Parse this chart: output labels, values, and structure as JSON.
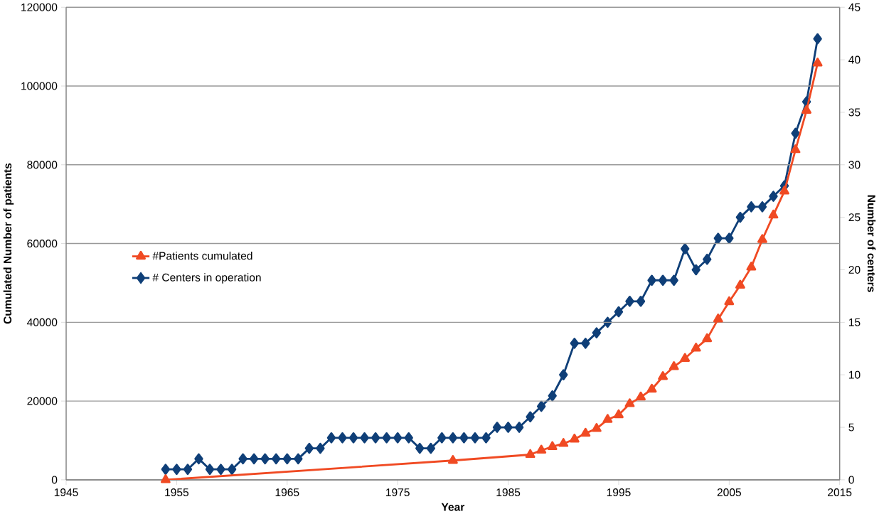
{
  "chart_data": {
    "type": "line",
    "xlabel": "Year",
    "ylabel": "Cumulated Number of patients",
    "y2label": "Number of centers",
    "xlim": [
      1945,
      2015
    ],
    "xticks": [
      1945,
      1955,
      1965,
      1975,
      1985,
      1995,
      2005,
      2015
    ],
    "ylim": [
      0,
      120000
    ],
    "yticks": [
      0,
      20000,
      40000,
      60000,
      80000,
      100000,
      120000
    ],
    "y2lim": [
      0,
      45
    ],
    "y2ticks": [
      0,
      5,
      10,
      15,
      20,
      25,
      30,
      35,
      40,
      45
    ],
    "grid": "y",
    "legend": "left",
    "line_style": "solid",
    "series": [
      {
        "name": "#Patients cumulated",
        "color": "#f04a23",
        "marker": "triangle",
        "x": [
          1954,
          1980,
          1987,
          1988,
          1989,
          1990,
          1991,
          1992,
          1993,
          1994,
          1995,
          1996,
          1997,
          1998,
          1999,
          2000,
          2001,
          2002,
          2003,
          2004,
          2005,
          2006,
          2007,
          2008,
          2009,
          2010,
          2011,
          2012,
          2013
        ],
        "values": [
          0,
          4900,
          6400,
          7500,
          8400,
          9200,
          10300,
          11800,
          13000,
          15300,
          16500,
          19300,
          21000,
          23000,
          26200,
          28700,
          30800,
          33400,
          35800,
          40800,
          45200,
          49400,
          54000,
          61000,
          67200,
          73300,
          83800,
          93800,
          105800
        ]
      },
      {
        "name": "# Centers in operation",
        "color": "#0f3f78",
        "marker": "diamond",
        "axis": "y2",
        "x": [
          1954,
          1955,
          1956,
          1957,
          1958,
          1959,
          1960,
          1961,
          1962,
          1963,
          1964,
          1965,
          1966,
          1967,
          1968,
          1969,
          1970,
          1971,
          1972,
          1973,
          1974,
          1975,
          1976,
          1977,
          1978,
          1979,
          1980,
          1981,
          1982,
          1983,
          1984,
          1985,
          1986,
          1987,
          1988,
          1989,
          1990,
          1991,
          1992,
          1993,
          1994,
          1995,
          1996,
          1997,
          1998,
          1999,
          2000,
          2001,
          2002,
          2003,
          2004,
          2005,
          2006,
          2007,
          2008,
          2009,
          2010,
          2011,
          2012,
          2013
        ],
        "values": [
          1,
          1,
          1,
          2,
          1,
          1,
          1,
          2,
          2,
          2,
          2,
          2,
          2,
          3,
          3,
          4,
          4,
          4,
          4,
          4,
          4,
          4,
          4,
          3,
          3,
          4,
          4,
          4,
          4,
          4,
          5,
          5,
          5,
          6,
          7,
          8,
          10,
          13,
          13,
          14,
          15,
          16,
          17,
          17,
          19,
          19,
          19,
          22,
          20,
          21,
          23,
          23,
          25,
          26,
          26,
          27,
          28,
          33,
          36,
          42
        ]
      }
    ]
  }
}
